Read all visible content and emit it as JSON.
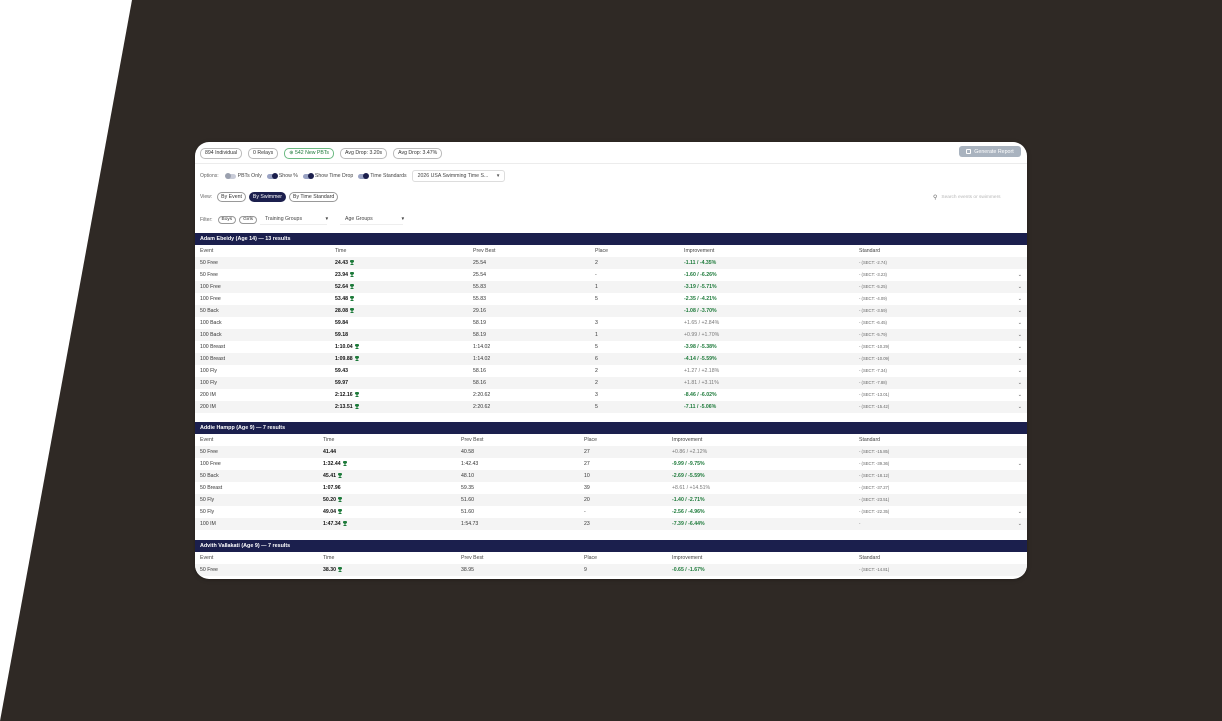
{
  "colors": {
    "navy": "#1b1f4d",
    "green": "#1d7a3a",
    "background_dark": "#2f2925"
  },
  "stats": {
    "individual": "894 Individual",
    "relays": "0 Relays",
    "new_pbts": "542 New PBTs",
    "avg_drop_s": "Avg Drop: 3.20s",
    "avg_drop_pct": "Avg Drop: 3.47%"
  },
  "generate_report": {
    "label": "Generate Report",
    "icon": "report-icon"
  },
  "options": {
    "label": "Options:",
    "pbts_only": "PBTs Only",
    "show_pct": "Show %",
    "show_time_drop": "Show Time Drop",
    "time_standards": "Time Standards",
    "standard_select": "2026 USA Swimming Time S..."
  },
  "view": {
    "label": "View:",
    "by_event": "By Event",
    "by_swimmer": "By Swimmer",
    "by_time_standard": "By Time Standard"
  },
  "search": {
    "placeholder": "Search events or swimmers"
  },
  "filter": {
    "label": "Filter:",
    "boys": "Boys",
    "girls": "Girls",
    "training_groups": "Training Groups",
    "age_groups": "Age Groups"
  },
  "columns": {
    "event": "Event",
    "time": "Time",
    "prev_best": "Prev Best",
    "place": "Place",
    "improvement": "Improvement",
    "standard": "Standard"
  },
  "swimmers": [
    {
      "title": "Adam Ebeidy (Age 14) — 13 results",
      "rows": [
        {
          "event": "50 Free",
          "time": "24.43",
          "pb": true,
          "prev": "25.54",
          "place": "2",
          "imp": "-1.11 / -4.35%",
          "good": true,
          "std": "- (SECT: -2.74)",
          "expand": false
        },
        {
          "event": "50 Free",
          "time": "23.94",
          "pb": true,
          "prev": "25.54",
          "place": "-",
          "imp": "-1.60 / -6.26%",
          "good": true,
          "std": "- (SECT: -3.23)",
          "expand": true
        },
        {
          "event": "100 Free",
          "time": "52.64",
          "pb": true,
          "prev": "55.83",
          "place": "1",
          "imp": "-3.19 / -5.71%",
          "good": true,
          "std": "- (SECT: -5.25)",
          "expand": true
        },
        {
          "event": "100 Free",
          "time": "53.48",
          "pb": true,
          "prev": "55.83",
          "place": "5",
          "imp": "-2.35 / -4.21%",
          "good": true,
          "std": "- (SECT: -4.09)",
          "expand": true
        },
        {
          "event": "50 Back",
          "time": "28.08",
          "pb": true,
          "prev": "29.16",
          "place": "",
          "imp": "-1.08 / -3.70%",
          "good": true,
          "std": "- (SECT: -3.59)",
          "expand": true
        },
        {
          "event": "100 Back",
          "time": "59.84",
          "pb": false,
          "prev": "58.19",
          "place": "3",
          "imp": "+1.65 / +2.84%",
          "good": false,
          "std": "- (SECT: -6.45)",
          "expand": true
        },
        {
          "event": "100 Back",
          "time": "59.18",
          "pb": false,
          "prev": "58.19",
          "place": "1",
          "imp": "+0.99 / +1.70%",
          "good": false,
          "std": "- (SECT: -5.79)",
          "expand": true
        },
        {
          "event": "100 Breast",
          "time": "1:10.04",
          "pb": true,
          "prev": "1:14.02",
          "place": "5",
          "imp": "-3.98 / -5.38%",
          "good": true,
          "std": "- (SECT: -10.29)",
          "expand": true
        },
        {
          "event": "100 Breast",
          "time": "1:09.88",
          "pb": true,
          "prev": "1:14.02",
          "place": "6",
          "imp": "-4.14 / -5.59%",
          "good": true,
          "std": "- (SECT: -10.09)",
          "expand": true
        },
        {
          "event": "100 Fly",
          "time": "59.43",
          "pb": false,
          "prev": "58.16",
          "place": "2",
          "imp": "+1.27 / +2.18%",
          "good": false,
          "std": "- (SECT: -7.34)",
          "expand": true
        },
        {
          "event": "100 Fly",
          "time": "59.97",
          "pb": false,
          "prev": "58.16",
          "place": "2",
          "imp": "+1.81 / +3.11%",
          "good": false,
          "std": "- (SECT: -7.88)",
          "expand": true
        },
        {
          "event": "200 IM",
          "time": "2:12.16",
          "pb": true,
          "prev": "2:20.62",
          "place": "3",
          "imp": "-8.46 / -6.02%",
          "good": true,
          "std": "- (SECT: -13.01)",
          "expand": true
        },
        {
          "event": "200 IM",
          "time": "2:13.51",
          "pb": true,
          "prev": "2:20.62",
          "place": "5",
          "imp": "-7.11 / -5.06%",
          "good": true,
          "std": "- (SECT: -15.42)",
          "expand": true
        }
      ]
    },
    {
      "title": "Addie Hampp (Age 9) — 7 results",
      "rows": [
        {
          "event": "50 Free",
          "time": "41.44",
          "pb": false,
          "prev": "40.58",
          "place": "27",
          "imp": "+0.86 / +2.12%",
          "good": false,
          "std": "- (SECT: -15.85)",
          "expand": false
        },
        {
          "event": "100 Free",
          "time": "1:32.44",
          "pb": true,
          "prev": "1:42.43",
          "place": "27",
          "imp": "-9.99 / -9.75%",
          "good": true,
          "std": "- (SECT: -39.36)",
          "expand": true
        },
        {
          "event": "50 Back",
          "time": "45.41",
          "pb": true,
          "prev": "48.10",
          "place": "10",
          "imp": "-2.69 / -5.59%",
          "good": true,
          "std": "- (SECT: -18.12)",
          "expand": false
        },
        {
          "event": "50 Breast",
          "time": "1:07.96",
          "pb": false,
          "prev": "59.35",
          "place": "39",
          "imp": "+8.61 / +14.51%",
          "good": false,
          "std": "- (SECT: -37.27)",
          "expand": false
        },
        {
          "event": "50 Fly",
          "time": "50.20",
          "pb": true,
          "prev": "51.60",
          "place": "20",
          "imp": "-1.40 / -2.71%",
          "good": true,
          "std": "- (SECT: -23.51)",
          "expand": false
        },
        {
          "event": "50 Fly",
          "time": "49.04",
          "pb": true,
          "prev": "51.60",
          "place": "-",
          "imp": "-2.56 / -4.96%",
          "good": true,
          "std": "- (SECT: -22.35)",
          "expand": true
        },
        {
          "event": "100 IM",
          "time": "1:47.34",
          "pb": true,
          "prev": "1:54.73",
          "place": "23",
          "imp": "-7.39 / -6.44%",
          "good": true,
          "std": "-",
          "expand": true
        }
      ]
    },
    {
      "title": "Advith Vallakati (Age 9) — 7 results",
      "rows": [
        {
          "event": "50 Free",
          "time": "38.30",
          "pb": true,
          "prev": "38.95",
          "place": "9",
          "imp": "-0.65 / -1.67%",
          "good": true,
          "std": "- (SECT: -14.81)",
          "expand": false
        }
      ]
    }
  ]
}
